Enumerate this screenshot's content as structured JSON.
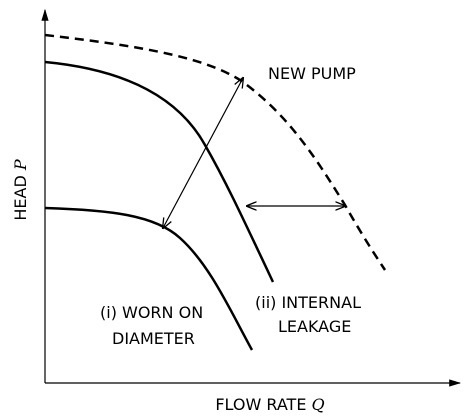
{
  "axes": {
    "y_label": {
      "text": "HEAD",
      "symbol": "P"
    },
    "x_label": {
      "text": "FLOW RATE",
      "symbol": "Q"
    }
  },
  "curves": {
    "new_pump": "NEW PUMP",
    "internal_leakage": [
      "(ii) INTERNAL",
      "LEAKAGE"
    ],
    "worn_diameter": [
      "(i) WORN ON",
      "DIAMETER"
    ]
  }
}
